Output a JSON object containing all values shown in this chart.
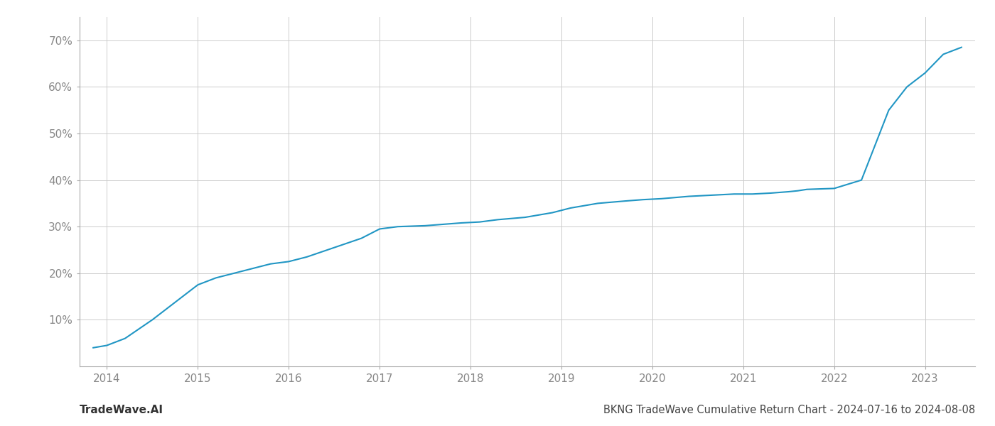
{
  "x_years": [
    2013.85,
    2014.0,
    2014.2,
    2014.5,
    2014.8,
    2015.0,
    2015.2,
    2015.5,
    2015.8,
    2016.0,
    2016.2,
    2016.5,
    2016.8,
    2017.0,
    2017.2,
    2017.5,
    2017.7,
    2017.9,
    2018.1,
    2018.3,
    2018.6,
    2018.9,
    2019.1,
    2019.4,
    2019.7,
    2019.9,
    2020.1,
    2020.4,
    2020.7,
    2020.9,
    2021.1,
    2021.3,
    2021.5,
    2021.6,
    2021.7,
    2022.0,
    2022.3,
    2022.6,
    2022.8,
    2023.0,
    2023.2,
    2023.4
  ],
  "y_values": [
    4.0,
    4.5,
    6.0,
    10.0,
    14.5,
    17.5,
    19.0,
    20.5,
    22.0,
    22.5,
    23.5,
    25.5,
    27.5,
    29.5,
    30.0,
    30.2,
    30.5,
    30.8,
    31.0,
    31.5,
    32.0,
    33.0,
    34.0,
    35.0,
    35.5,
    35.8,
    36.0,
    36.5,
    36.8,
    37.0,
    37.0,
    37.2,
    37.5,
    37.7,
    38.0,
    38.2,
    40.0,
    55.0,
    60.0,
    63.0,
    67.0,
    68.5
  ],
  "line_color": "#2196c4",
  "line_width": 1.5,
  "background_color": "#ffffff",
  "grid_color": "#cccccc",
  "title": "BKNG TradeWave Cumulative Return Chart - 2024-07-16 to 2024-08-08",
  "title_fontsize": 10.5,
  "watermark": "TradeWave.AI",
  "watermark_fontsize": 11,
  "ytick_labels": [
    "10%",
    "20%",
    "30%",
    "40%",
    "50%",
    "60%",
    "70%"
  ],
  "ytick_values": [
    10,
    20,
    30,
    40,
    50,
    60,
    70
  ],
  "xtick_labels": [
    "2014",
    "2015",
    "2016",
    "2017",
    "2018",
    "2019",
    "2020",
    "2021",
    "2022",
    "2023"
  ],
  "xtick_values": [
    2014,
    2015,
    2016,
    2017,
    2018,
    2019,
    2020,
    2021,
    2022,
    2023
  ],
  "xlim": [
    2013.7,
    2023.55
  ],
  "ylim": [
    0,
    75
  ]
}
